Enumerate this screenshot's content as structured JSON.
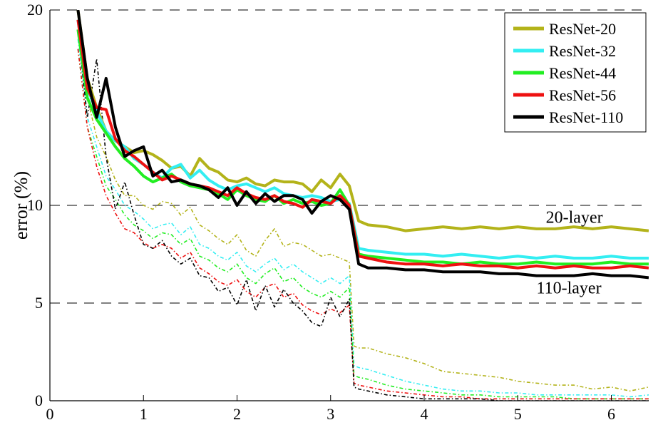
{
  "chart_data": {
    "type": "line",
    "title": "",
    "xlabel": "",
    "ylabel": "error (%)",
    "xlim": [
      0,
      6.4
    ],
    "ylim": [
      0,
      20
    ],
    "x_ticks": [
      0,
      1,
      2,
      3,
      4,
      5,
      6
    ],
    "x_tick_labels": [
      "0",
      "1",
      "2",
      "3",
      "4",
      "5",
      "6"
    ],
    "y_ticks": [
      0,
      5,
      10,
      20
    ],
    "y_tick_labels": [
      "0",
      "5",
      "10",
      "20"
    ],
    "y_grid_dashed_at": [
      5,
      10,
      20
    ],
    "legend_position": "top-right",
    "annotations": [
      {
        "text": "20-layer",
        "x": 5.3,
        "y": 9.1
      },
      {
        "text": "110-layer",
        "x": 5.2,
        "y": 5.5
      }
    ],
    "series": [
      {
        "name": "ResNet-20",
        "color": "#b3b31a",
        "style": "test",
        "x": [
          0.3,
          0.4,
          0.5,
          0.6,
          0.7,
          0.8,
          0.9,
          1.0,
          1.1,
          1.2,
          1.3,
          1.4,
          1.5,
          1.6,
          1.7,
          1.8,
          1.9,
          2.0,
          2.1,
          2.2,
          2.3,
          2.4,
          2.5,
          2.6,
          2.7,
          2.8,
          2.9,
          3.0,
          3.1,
          3.2,
          3.3,
          3.4,
          3.6,
          3.8,
          4.0,
          4.2,
          4.4,
          4.6,
          4.8,
          5.0,
          5.2,
          5.4,
          5.6,
          5.8,
          6.0,
          6.2,
          6.4
        ],
        "y": [
          20.0,
          16.5,
          15.0,
          13.8,
          13.3,
          13.0,
          12.7,
          12.8,
          12.6,
          12.3,
          11.9,
          12.0,
          11.5,
          12.4,
          11.9,
          11.7,
          11.3,
          11.2,
          11.4,
          11.1,
          11.0,
          11.3,
          11.2,
          11.2,
          11.1,
          10.7,
          11.3,
          10.9,
          11.6,
          11.0,
          9.2,
          9.0,
          8.9,
          8.7,
          8.8,
          8.9,
          8.8,
          8.9,
          8.8,
          8.9,
          8.8,
          8.8,
          8.9,
          8.8,
          8.9,
          8.8,
          8.7
        ]
      },
      {
        "name": "ResNet-32",
        "color": "#33eef2",
        "style": "test",
        "x": [
          0.3,
          0.4,
          0.5,
          0.6,
          0.7,
          0.8,
          0.9,
          1.0,
          1.1,
          1.2,
          1.3,
          1.4,
          1.5,
          1.6,
          1.7,
          1.8,
          1.9,
          2.0,
          2.1,
          2.2,
          2.3,
          2.4,
          2.5,
          2.6,
          2.7,
          2.8,
          2.9,
          3.0,
          3.1,
          3.2,
          3.3,
          3.4,
          3.6,
          3.8,
          4.0,
          4.2,
          4.4,
          4.6,
          4.8,
          5.0,
          5.2,
          5.4,
          5.6,
          5.8,
          6.0,
          6.2,
          6.4
        ],
        "y": [
          19.5,
          16.0,
          14.8,
          13.8,
          13.3,
          13.0,
          12.4,
          12.1,
          11.7,
          11.4,
          11.9,
          12.1,
          11.4,
          11.8,
          11.3,
          11.0,
          10.8,
          11.0,
          11.1,
          10.9,
          10.7,
          10.9,
          10.6,
          10.5,
          10.4,
          10.5,
          10.4,
          10.2,
          10.3,
          10.1,
          7.8,
          7.7,
          7.6,
          7.5,
          7.5,
          7.4,
          7.5,
          7.4,
          7.3,
          7.4,
          7.3,
          7.4,
          7.3,
          7.3,
          7.4,
          7.3,
          7.3
        ]
      },
      {
        "name": "ResNet-44",
        "color": "#22ee22",
        "style": "test",
        "x": [
          0.3,
          0.4,
          0.5,
          0.6,
          0.7,
          0.8,
          0.9,
          1.0,
          1.1,
          1.2,
          1.3,
          1.4,
          1.5,
          1.6,
          1.7,
          1.8,
          1.9,
          2.0,
          2.1,
          2.2,
          2.3,
          2.4,
          2.5,
          2.6,
          2.7,
          2.8,
          2.9,
          3.0,
          3.1,
          3.2,
          3.3,
          3.4,
          3.6,
          3.8,
          4.0,
          4.2,
          4.4,
          4.6,
          4.8,
          5.0,
          5.2,
          5.4,
          5.6,
          5.8,
          6.0,
          6.2,
          6.4
        ],
        "y": [
          19.0,
          15.5,
          14.4,
          13.7,
          13.0,
          12.4,
          12.0,
          11.5,
          11.2,
          11.4,
          11.6,
          11.2,
          11.0,
          10.9,
          10.8,
          10.6,
          10.3,
          10.8,
          10.5,
          10.3,
          10.2,
          10.5,
          10.1,
          10.3,
          10.1,
          10.2,
          10.0,
          10.1,
          10.8,
          10.0,
          7.5,
          7.4,
          7.3,
          7.2,
          7.1,
          7.1,
          7.0,
          7.1,
          7.0,
          7.0,
          7.1,
          7.0,
          7.0,
          7.0,
          7.1,
          7.0,
          7.0
        ]
      },
      {
        "name": "ResNet-56",
        "color": "#ee1111",
        "style": "test",
        "x": [
          0.3,
          0.4,
          0.5,
          0.6,
          0.7,
          0.8,
          0.9,
          1.0,
          1.1,
          1.2,
          1.3,
          1.4,
          1.5,
          1.6,
          1.7,
          1.8,
          1.9,
          2.0,
          2.1,
          2.2,
          2.3,
          2.4,
          2.5,
          2.6,
          2.7,
          2.8,
          2.9,
          3.0,
          3.1,
          3.2,
          3.3,
          3.4,
          3.6,
          3.8,
          4.0,
          4.2,
          4.4,
          4.6,
          4.8,
          5.0,
          5.2,
          5.4,
          5.6,
          5.8,
          6.0,
          6.2,
          6.4
        ],
        "y": [
          19.5,
          16.0,
          15.0,
          14.9,
          13.4,
          12.8,
          12.5,
          12.1,
          11.7,
          11.3,
          11.5,
          11.3,
          11.1,
          11.0,
          10.9,
          10.7,
          10.5,
          10.9,
          10.6,
          10.4,
          10.3,
          10.5,
          10.2,
          10.1,
          9.9,
          10.3,
          10.2,
          10.1,
          10.5,
          10.0,
          7.4,
          7.3,
          7.1,
          7.0,
          7.0,
          6.9,
          7.0,
          6.9,
          6.9,
          6.8,
          6.9,
          6.8,
          6.9,
          6.8,
          6.8,
          6.9,
          6.8
        ]
      },
      {
        "name": "ResNet-110",
        "color": "#000000",
        "style": "test",
        "x": [
          0.3,
          0.4,
          0.5,
          0.6,
          0.7,
          0.8,
          0.9,
          1.0,
          1.1,
          1.2,
          1.3,
          1.4,
          1.5,
          1.6,
          1.7,
          1.8,
          1.9,
          2.0,
          2.1,
          2.2,
          2.3,
          2.4,
          2.5,
          2.6,
          2.7,
          2.8,
          2.9,
          3.0,
          3.1,
          3.2,
          3.3,
          3.4,
          3.6,
          3.8,
          4.0,
          4.2,
          4.4,
          4.6,
          4.8,
          5.0,
          5.2,
          5.4,
          5.6,
          5.8,
          6.0,
          6.2,
          6.4
        ],
        "y": [
          20.0,
          16.5,
          14.5,
          16.5,
          14.0,
          12.5,
          12.8,
          13.0,
          11.5,
          11.8,
          11.2,
          11.3,
          11.1,
          11.0,
          10.8,
          10.4,
          10.9,
          10.0,
          10.7,
          10.1,
          10.6,
          10.2,
          10.5,
          10.5,
          10.3,
          9.6,
          10.2,
          10.5,
          10.3,
          9.8,
          7.0,
          6.8,
          6.8,
          6.7,
          6.7,
          6.6,
          6.6,
          6.6,
          6.5,
          6.5,
          6.4,
          6.4,
          6.4,
          6.5,
          6.4,
          6.4,
          6.3
        ]
      },
      {
        "name": "ResNet-20",
        "color": "#b3b31a",
        "style": "train",
        "x": [
          0.3,
          0.4,
          0.5,
          0.6,
          0.7,
          0.8,
          0.9,
          1.0,
          1.1,
          1.2,
          1.3,
          1.4,
          1.5,
          1.6,
          1.7,
          1.8,
          1.9,
          2.0,
          2.1,
          2.2,
          2.3,
          2.4,
          2.5,
          2.6,
          2.7,
          2.8,
          2.9,
          3.0,
          3.1,
          3.2,
          3.25,
          3.3,
          3.4,
          3.6,
          3.8,
          4.0,
          4.2,
          4.4,
          4.6,
          4.8,
          5.0,
          5.2,
          5.4,
          5.6,
          5.8,
          6.0,
          6.2,
          6.4
        ],
        "y": [
          19.0,
          15.5,
          13.5,
          12.5,
          11.3,
          10.5,
          10.5,
          10.0,
          9.8,
          10.2,
          10.1,
          9.5,
          9.9,
          9.0,
          8.7,
          8.3,
          8.0,
          8.5,
          7.7,
          7.4,
          8.2,
          8.8,
          7.9,
          8.1,
          8.0,
          7.7,
          7.4,
          7.5,
          7.3,
          7.1,
          2.8,
          2.7,
          2.7,
          2.4,
          2.2,
          1.9,
          1.5,
          1.4,
          1.3,
          1.2,
          1.0,
          0.9,
          0.8,
          0.8,
          0.6,
          0.7,
          0.5,
          0.7
        ]
      },
      {
        "name": "ResNet-32",
        "color": "#33eef2",
        "style": "train",
        "x": [
          0.3,
          0.4,
          0.5,
          0.6,
          0.7,
          0.8,
          0.9,
          1.0,
          1.1,
          1.2,
          1.3,
          1.4,
          1.5,
          1.6,
          1.7,
          1.8,
          1.9,
          2.0,
          2.1,
          2.2,
          2.3,
          2.4,
          2.5,
          2.6,
          2.7,
          2.8,
          2.9,
          3.0,
          3.1,
          3.2,
          3.25,
          3.3,
          3.4,
          3.6,
          3.8,
          4.0,
          4.2,
          4.4,
          4.6,
          4.8,
          5.0,
          5.2,
          5.4,
          5.6,
          5.8,
          6.0,
          6.2,
          6.4
        ],
        "y": [
          18.5,
          14.5,
          13.0,
          11.5,
          10.8,
          10.0,
          9.7,
          9.3,
          8.8,
          9.0,
          9.1,
          8.5,
          8.9,
          8.0,
          7.8,
          7.4,
          7.2,
          7.6,
          6.9,
          6.6,
          7.0,
          7.3,
          6.7,
          7.0,
          6.6,
          6.3,
          6.0,
          6.3,
          6.0,
          6.4,
          1.8,
          1.7,
          1.6,
          1.3,
          1.0,
          0.8,
          0.6,
          0.5,
          0.5,
          0.4,
          0.4,
          0.3,
          0.3,
          0.3,
          0.3,
          0.3,
          0.2,
          0.3
        ]
      },
      {
        "name": "ResNet-44",
        "color": "#22ee22",
        "style": "train",
        "x": [
          0.3,
          0.4,
          0.5,
          0.6,
          0.7,
          0.8,
          0.9,
          1.0,
          1.1,
          1.2,
          1.3,
          1.4,
          1.5,
          1.6,
          1.7,
          1.8,
          1.9,
          2.0,
          2.1,
          2.2,
          2.3,
          2.4,
          2.5,
          2.6,
          2.7,
          2.8,
          2.9,
          3.0,
          3.1,
          3.2,
          3.25,
          3.3,
          3.4,
          3.6,
          3.8,
          4.0,
          4.2,
          4.4,
          4.6,
          4.8,
          5.0,
          5.2,
          5.4,
          5.6,
          5.8,
          6.0,
          6.2,
          6.4
        ],
        "y": [
          18.0,
          14.0,
          12.5,
          11.0,
          10.3,
          9.5,
          9.0,
          8.7,
          8.3,
          8.6,
          8.5,
          8.0,
          8.3,
          7.4,
          7.2,
          6.8,
          6.6,
          7.0,
          6.3,
          6.0,
          6.5,
          6.8,
          6.1,
          6.3,
          5.8,
          5.5,
          5.3,
          5.6,
          5.3,
          5.8,
          1.3,
          1.2,
          1.1,
          0.8,
          0.6,
          0.5,
          0.4,
          0.3,
          0.3,
          0.2,
          0.2,
          0.2,
          0.2,
          0.1,
          0.1,
          0.1,
          0.1,
          0.1
        ]
      },
      {
        "name": "ResNet-56",
        "color": "#ee1111",
        "style": "train",
        "x": [
          0.3,
          0.4,
          0.5,
          0.6,
          0.7,
          0.8,
          0.9,
          1.0,
          1.1,
          1.2,
          1.3,
          1.4,
          1.5,
          1.6,
          1.7,
          1.8,
          1.9,
          2.0,
          2.1,
          2.2,
          2.3,
          2.4,
          2.5,
          2.6,
          2.7,
          2.8,
          2.9,
          3.0,
          3.1,
          3.2,
          3.25,
          3.3,
          3.4,
          3.6,
          3.8,
          4.0,
          4.2,
          4.4,
          4.6,
          4.8,
          5.0,
          5.2,
          5.4,
          5.6,
          5.8,
          6.0,
          6.2,
          6.4
        ],
        "y": [
          18.0,
          14.0,
          12.0,
          10.5,
          9.6,
          8.8,
          8.6,
          8.1,
          7.8,
          8.0,
          7.8,
          7.3,
          7.6,
          6.8,
          6.5,
          6.1,
          5.9,
          6.2,
          5.6,
          5.3,
          5.8,
          6.0,
          5.3,
          5.5,
          4.9,
          4.6,
          4.4,
          4.7,
          4.5,
          4.9,
          0.9,
          0.8,
          0.7,
          0.5,
          0.4,
          0.3,
          0.2,
          0.2,
          0.1,
          0.1,
          0.1,
          0.1,
          0.1,
          0.1,
          0.1,
          0.1,
          0.1,
          0.1
        ]
      },
      {
        "name": "ResNet-110",
        "color": "#000000",
        "style": "train",
        "x": [
          0.3,
          0.4,
          0.5,
          0.6,
          0.7,
          0.8,
          0.9,
          1.0,
          1.1,
          1.2,
          1.3,
          1.4,
          1.5,
          1.6,
          1.7,
          1.8,
          1.9,
          2.0,
          2.1,
          2.2,
          2.3,
          2.4,
          2.5,
          2.6,
          2.7,
          2.8,
          2.9,
          3.0,
          3.1,
          3.2,
          3.25,
          3.3,
          3.4,
          3.6,
          3.8,
          4.0,
          4.2,
          4.4,
          4.6,
          4.8,
          5.0,
          5.2,
          5.4,
          5.6,
          5.8,
          6.0,
          6.2,
          6.4
        ],
        "y": [
          19.0,
          14.5,
          17.5,
          12.5,
          9.8,
          11.2,
          9.5,
          8.0,
          7.8,
          8.2,
          7.4,
          7.0,
          7.3,
          6.4,
          6.3,
          5.6,
          5.8,
          4.9,
          6.2,
          4.6,
          5.9,
          4.8,
          5.7,
          5.0,
          4.6,
          4.0,
          3.8,
          5.3,
          4.3,
          5.2,
          0.7,
          0.6,
          0.5,
          0.3,
          0.2,
          0.1,
          0.1,
          0.1,
          0.1,
          0.0,
          0.0,
          0.0,
          0.0,
          0.0,
          0.0,
          0.0,
          0.0,
          0.0
        ]
      }
    ]
  }
}
